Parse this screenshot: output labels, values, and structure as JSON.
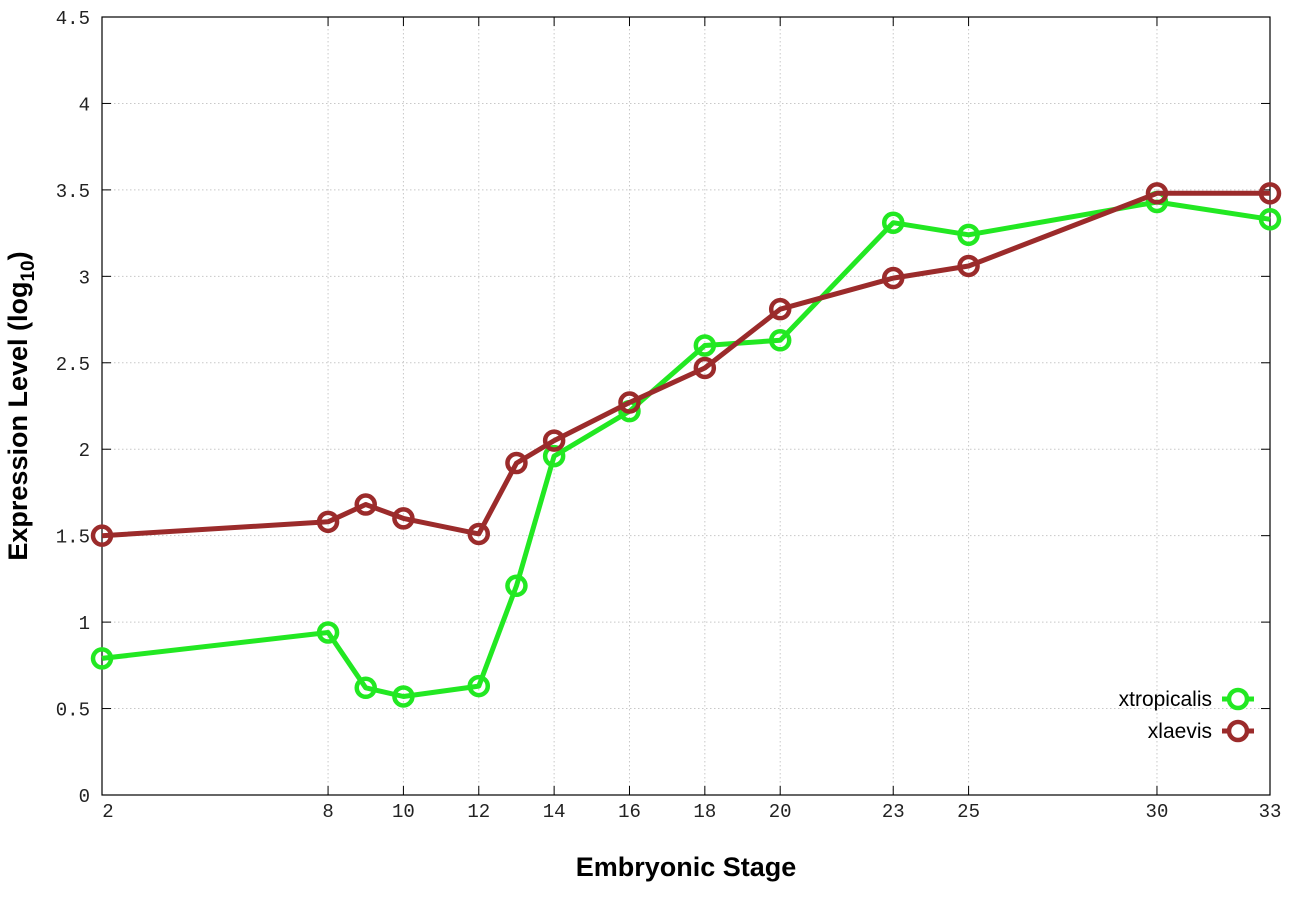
{
  "chart_data": {
    "type": "line",
    "title": "",
    "xlabel": "Embryonic Stage",
    "ylabel": {
      "main": "Expression Level (log",
      "sub": "10",
      "close": ")"
    },
    "x_ticks": [
      2,
      8,
      10,
      12,
      14,
      16,
      18,
      20,
      23,
      25,
      30,
      33
    ],
    "y_ticks": [
      0,
      0.5,
      1,
      1.5,
      2,
      2.5,
      3,
      3.5,
      4,
      4.5
    ],
    "y_tick_labels": [
      "0",
      "0.5",
      "1",
      "1.5",
      "2",
      "2.5",
      "3",
      "3.5",
      "4",
      "4.5"
    ],
    "xlim": [
      2,
      33
    ],
    "ylim": [
      0,
      4.5
    ],
    "grid": true,
    "legend_position": "bottom-right",
    "x": [
      2,
      8,
      9,
      10,
      12,
      13,
      14,
      16,
      18,
      20,
      23,
      25,
      30,
      33
    ],
    "series": [
      {
        "name": "xtropicalis",
        "color": "#22e822",
        "values": [
          0.79,
          0.94,
          0.62,
          0.57,
          0.63,
          1.21,
          1.96,
          2.22,
          2.6,
          2.63,
          3.31,
          3.24,
          3.43,
          3.33
        ]
      },
      {
        "name": "xlaevis",
        "color": "#9b2b2b",
        "values": [
          1.5,
          1.58,
          1.68,
          1.6,
          1.51,
          1.92,
          2.05,
          2.27,
          2.47,
          2.81,
          2.99,
          3.06,
          3.48,
          3.48
        ]
      }
    ]
  }
}
